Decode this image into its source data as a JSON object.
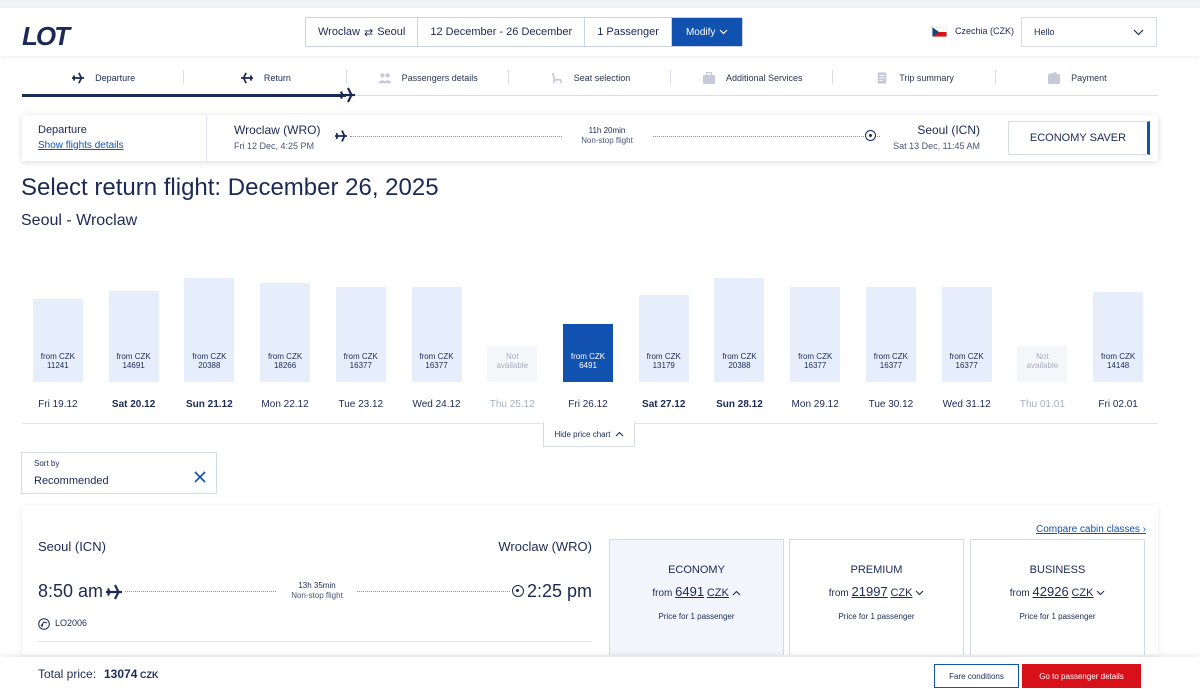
{
  "header": {
    "logo_text": "LOT",
    "search": {
      "route_from": "Wroclaw",
      "route_to": "Seoul",
      "dates": "12 December - 26 December",
      "passengers": "1 Passenger",
      "modify_label": "Modify"
    },
    "country": "Czechia (CZK)",
    "greeting": "Hello"
  },
  "steps": [
    {
      "label": "Departure",
      "icon": "plane-icon",
      "state": "done"
    },
    {
      "label": "Return",
      "icon": "plane-icon",
      "state": "current"
    },
    {
      "label": "Passengers details",
      "icon": "people-icon",
      "state": "pending"
    },
    {
      "label": "Seat selection",
      "icon": "seat-icon",
      "state": "pending"
    },
    {
      "label": "Additional Services",
      "icon": "bag-icon",
      "state": "pending"
    },
    {
      "label": "Trip summary",
      "icon": "document-icon",
      "state": "pending"
    },
    {
      "label": "Payment",
      "icon": "wallet-icon",
      "state": "pending"
    }
  ],
  "departure_summary": {
    "title": "Departure",
    "link": "Show flights details",
    "from": "Wroclaw (WRO)",
    "from_time": "Fri 12 Dec, 4:25 PM",
    "duration": "11h 20min",
    "type": "Non-stop flight",
    "to": "Seoul (ICN)",
    "to_time": "Sat 13 Dec, 11:45 AM",
    "fare": "ECONOMY SAVER"
  },
  "page": {
    "title": "Select return flight: December 26, 2025",
    "subtitle": "Seoul - Wroclaw"
  },
  "price_chart": {
    "from_label": "from CZK",
    "na_label_1": "Not",
    "na_label_2": "available",
    "hide_label": "Hide price chart",
    "days": [
      {
        "day": "Fri 19.12",
        "price": "11241",
        "bold": false,
        "available": true
      },
      {
        "day": "Sat 20.12",
        "price": "14691",
        "bold": true,
        "available": true
      },
      {
        "day": "Sun 21.12",
        "price": "20388",
        "bold": true,
        "available": true
      },
      {
        "day": "Mon 22.12",
        "price": "18266",
        "bold": false,
        "available": true
      },
      {
        "day": "Tue 23.12",
        "price": "16377",
        "bold": false,
        "available": true
      },
      {
        "day": "Wed 24.12",
        "price": "16377",
        "bold": false,
        "available": true
      },
      {
        "day": "Thu 25.12",
        "price": "",
        "bold": false,
        "available": false
      },
      {
        "day": "Fri 26.12",
        "price": "6491",
        "bold": false,
        "available": true,
        "selected": true
      },
      {
        "day": "Sat 27.12",
        "price": "13179",
        "bold": true,
        "available": true
      },
      {
        "day": "Sun 28.12",
        "price": "20388",
        "bold": true,
        "available": true
      },
      {
        "day": "Mon 29.12",
        "price": "16377",
        "bold": false,
        "available": true
      },
      {
        "day": "Tue 30.12",
        "price": "16377",
        "bold": false,
        "available": true
      },
      {
        "day": "Wed 31.12",
        "price": "16377",
        "bold": false,
        "available": true
      },
      {
        "day": "Thu 01.01",
        "price": "",
        "bold": false,
        "available": false
      },
      {
        "day": "Fri 02.01",
        "price": "14148",
        "bold": false,
        "available": true
      }
    ]
  },
  "sort": {
    "caption": "Sort by",
    "value": "Recommended"
  },
  "flight": {
    "from": "Seoul (ICN)",
    "to": "Wroclaw (WRO)",
    "dep_time": "8:50 am",
    "arr_time": "2:25 pm",
    "duration": "13h 35min",
    "type": "Non-stop flight",
    "flight_no": "LO2006",
    "compare_link": "Compare cabin classes",
    "cabins": [
      {
        "name": "ECONOMY",
        "from": "from",
        "price": "6491",
        "currency": "CZK",
        "note": "Price for 1 passenger",
        "active": true
      },
      {
        "name": "PREMIUM",
        "from": "from",
        "price": "21997",
        "currency": "CZK",
        "note": "Price for 1 passenger",
        "active": false
      },
      {
        "name": "BUSINESS",
        "from": "from",
        "price": "42926",
        "currency": "CZK",
        "note": "Price for 1 passenger",
        "active": false
      }
    ]
  },
  "footer": {
    "total_label": "Total price:",
    "total_value": "13074",
    "currency": "CZK",
    "fare_conditions": "Fare conditions",
    "go_button": "Go to passenger details"
  },
  "colors": {
    "brand_navy": "#1b2a55",
    "accent_blue": "#1152b0",
    "cta_red": "#d7101a",
    "bar_fill": "#e6eefb"
  }
}
